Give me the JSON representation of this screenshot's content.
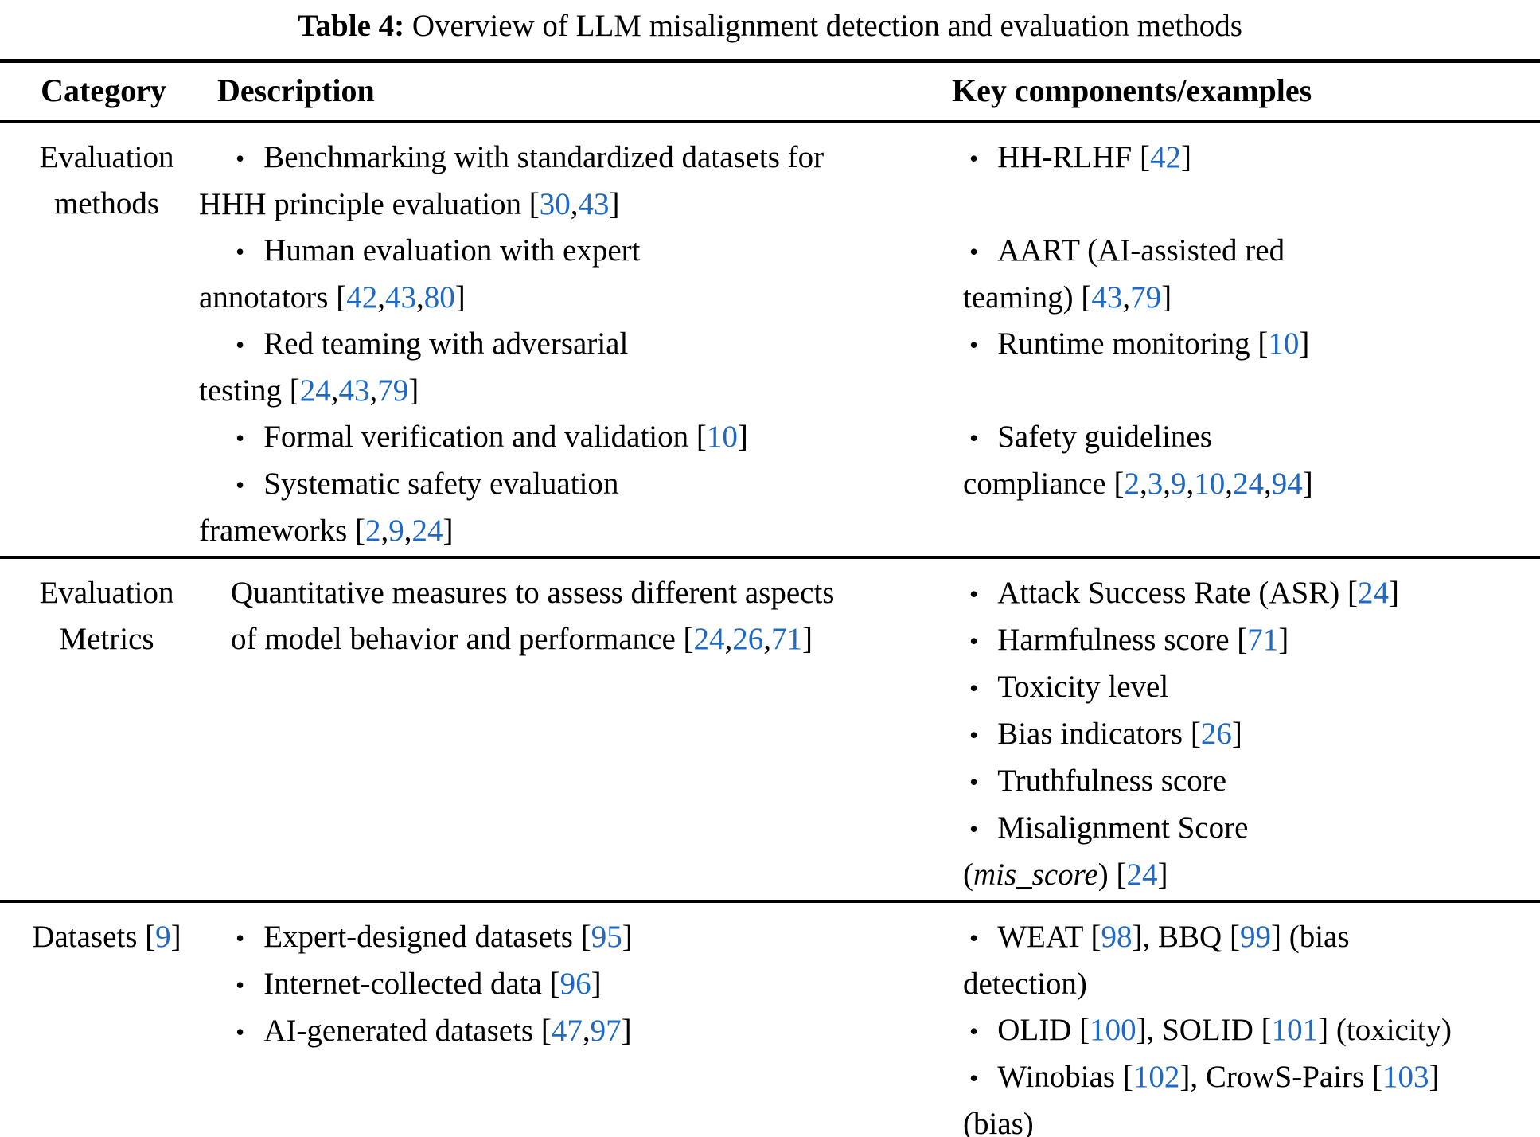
{
  "page": {
    "background": "#ffffff",
    "text_color": "#000000"
  },
  "colors": {
    "citation_blue": "#1e69c3",
    "rule_color": "#000000"
  },
  "caption": {
    "label": "Table 4:",
    "text": "Overview of LLM misalignment detection and evaluation methods"
  },
  "table": {
    "headers": [
      "Category",
      "Description",
      "Key components/examples"
    ],
    "rows": [
      {
        "category": "Evaluation\nmethods",
        "description_items": [
          "Benchmarking with standardized datasets for\nHHH principle evaluation [30,43]",
          "Human evaluation with expert\nannotators [42,43,80]",
          "Red teaming with adversarial\ntesting [24,43,79]",
          "Formal verification and validation [10]",
          "Systematic safety evaluation\nframeworks [2,9,24]"
        ],
        "key_items": [
          "HH-RLHF [42]",
          "AART (AI-assisted red\nteaming) [43,79]",
          "Runtime monitoring [10]",
          "Safety guidelines\ncompliance [2,3,9,10,24,94]"
        ]
      },
      {
        "category": "Evaluation\nMetrics",
        "description_text": "Quantitative measures to assess different aspects\nof model behavior and performance [24,26,71]",
        "key_items": [
          "Attack Success Rate (ASR) [24]",
          "Harmfulness score [71]",
          "Toxicity level",
          "Bias indicators [26]",
          "Truthfulness score",
          "Misalignment Score\n(*mis_score*) [24]"
        ]
      },
      {
        "category": "Datasets [9]",
        "description_items": [
          "Expert-designed datasets [95]",
          "Internet-collected data [96]",
          "AI-generated datasets [47,97]"
        ],
        "key_items": [
          "WEAT [98], BBQ [99] (bias\ndetection)",
          "OLID [100], SOLID [101] (toxicity)",
          "Winobias [102], CrowS-Pairs [103]\n(bias)"
        ]
      }
    ]
  }
}
